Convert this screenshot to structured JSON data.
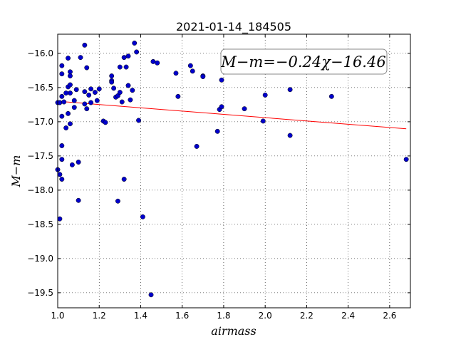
{
  "chart_data": {
    "type": "scatter",
    "title": "2021-01-14_184505",
    "xlabel": "airmass",
    "ylabel": "M−m",
    "xlim": [
      1.0,
      2.7
    ],
    "ylim": [
      -19.72,
      -15.72
    ],
    "y_inverted": true,
    "grid": true,
    "x_ticks": [
      1.0,
      1.2,
      1.4,
      1.6,
      1.8,
      2.0,
      2.2,
      2.4,
      2.6
    ],
    "x_tick_labels": [
      "1.0",
      "1.2",
      "1.4",
      "1.6",
      "1.8",
      "2.0",
      "2.2",
      "2.4",
      "2.6"
    ],
    "y_ticks": [
      -16.0,
      -16.5,
      -17.0,
      -17.5,
      -18.0,
      -18.5,
      -19.0,
      -19.5
    ],
    "y_tick_labels": [
      "−16.0",
      "−16.5",
      "−17.0",
      "−17.5",
      "−18.0",
      "−18.5",
      "−19.0",
      "−19.5"
    ],
    "annotation": "M−m=−0.24χ−16.46",
    "fit_line": {
      "slope": -0.24,
      "intercept": -16.46,
      "x_range": [
        1.0,
        2.68
      ],
      "color": "#ff0000"
    },
    "point_color": "#0000cc",
    "points": [
      [
        1.0,
        -16.72
      ],
      [
        1.0,
        -17.7
      ],
      [
        1.01,
        -17.77
      ],
      [
        1.01,
        -18.42
      ],
      [
        1.01,
        -16.72
      ],
      [
        1.02,
        -16.3
      ],
      [
        1.02,
        -16.18
      ],
      [
        1.02,
        -16.63
      ],
      [
        1.02,
        -17.35
      ],
      [
        1.02,
        -17.55
      ],
      [
        1.02,
        -17.84
      ],
      [
        1.02,
        -16.92
      ],
      [
        1.03,
        -16.71
      ],
      [
        1.04,
        -17.09
      ],
      [
        1.04,
        -16.58
      ],
      [
        1.05,
        -16.49
      ],
      [
        1.05,
        -16.88
      ],
      [
        1.05,
        -16.07
      ],
      [
        1.06,
        -16.27
      ],
      [
        1.06,
        -16.33
      ],
      [
        1.06,
        -16.46
      ],
      [
        1.06,
        -16.58
      ],
      [
        1.06,
        -17.03
      ],
      [
        1.07,
        -17.63
      ],
      [
        1.08,
        -16.79
      ],
      [
        1.08,
        -16.69
      ],
      [
        1.09,
        -16.53
      ],
      [
        1.1,
        -17.59
      ],
      [
        1.1,
        -18.15
      ],
      [
        1.11,
        -16.06
      ],
      [
        1.13,
        -16.56
      ],
      [
        1.13,
        -16.74
      ],
      [
        1.13,
        -15.88
      ],
      [
        1.14,
        -16.21
      ],
      [
        1.14,
        -16.81
      ],
      [
        1.15,
        -16.61
      ],
      [
        1.16,
        -16.52
      ],
      [
        1.16,
        -16.72
      ],
      [
        1.18,
        -16.57
      ],
      [
        1.19,
        -16.69
      ],
      [
        1.2,
        -16.52
      ],
      [
        1.22,
        -16.99
      ],
      [
        1.23,
        -17.01
      ],
      [
        1.26,
        -16.4
      ],
      [
        1.26,
        -16.33
      ],
      [
        1.26,
        -16.42
      ],
      [
        1.27,
        -16.51
      ],
      [
        1.28,
        -16.64
      ],
      [
        1.29,
        -18.16
      ],
      [
        1.29,
        -16.62
      ],
      [
        1.3,
        -16.57
      ],
      [
        1.3,
        -16.2
      ],
      [
        1.31,
        -16.71
      ],
      [
        1.32,
        -17.84
      ],
      [
        1.32,
        -16.06
      ],
      [
        1.33,
        -16.2
      ],
      [
        1.34,
        -16.04
      ],
      [
        1.34,
        -16.47
      ],
      [
        1.35,
        -16.68
      ],
      [
        1.36,
        -16.54
      ],
      [
        1.37,
        -15.85
      ],
      [
        1.38,
        -15.98
      ],
      [
        1.39,
        -16.98
      ],
      [
        1.41,
        -18.39
      ],
      [
        1.45,
        -19.53
      ],
      [
        1.46,
        -16.12
      ],
      [
        1.48,
        -16.14
      ],
      [
        1.57,
        -16.29
      ],
      [
        1.58,
        -16.63
      ],
      [
        1.64,
        -16.18
      ],
      [
        1.65,
        -16.26
      ],
      [
        1.67,
        -17.36
      ],
      [
        1.7,
        -16.33
      ],
      [
        1.7,
        -16.34
      ],
      [
        1.77,
        -17.14
      ],
      [
        1.78,
        -16.82
      ],
      [
        1.79,
        -16.39
      ],
      [
        1.79,
        -16.78
      ],
      [
        1.9,
        -16.81
      ],
      [
        1.99,
        -16.99
      ],
      [
        2.0,
        -16.61
      ],
      [
        2.12,
        -16.53
      ],
      [
        2.12,
        -17.2
      ],
      [
        2.32,
        -16.63
      ],
      [
        2.68,
        -17.55
      ]
    ]
  }
}
